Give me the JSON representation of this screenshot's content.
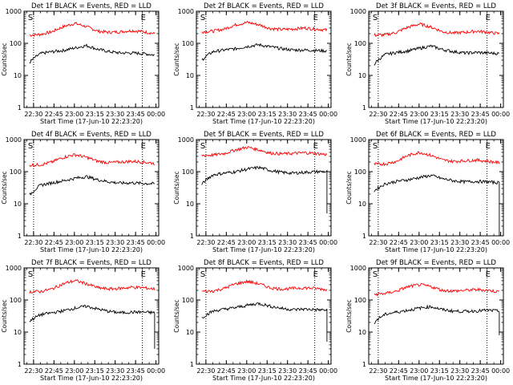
{
  "chart_data": [
    {
      "type": "line",
      "title": "Det 1f BLACK = Events, RED = LLD",
      "xlabel": "Start Time (17-Jun-10 22:23:20)",
      "ylabel": "Counts/sec",
      "yscale": "log",
      "ylim": [
        1,
        1000
      ],
      "yticks": [
        "1",
        "10",
        "100",
        "1000"
      ],
      "xticks": [
        "22:30",
        "22:45",
        "23:00",
        "23:15",
        "23:30",
        "23:45",
        "00:00"
      ],
      "markers": [
        "S",
        "E"
      ],
      "vlines": [
        "22:30",
        "23:50"
      ],
      "series": [
        {
          "color": "#ff0000",
          "values": [
            180,
            190,
            230,
            330,
            420,
            330,
            240,
            220,
            230,
            250,
            230,
            200
          ],
          "end_drop": null
        },
        {
          "color": "#000000",
          "values": [
            25,
            48,
            55,
            60,
            72,
            85,
            65,
            55,
            50,
            50,
            48,
            43
          ],
          "end_drop": null
        }
      ]
    },
    {
      "type": "line",
      "title": "Det 2f BLACK = Events, RED = LLD",
      "xlabel": "Start Time (17-Jun-10 22:23:20)",
      "ylabel": "Counts/sec",
      "yscale": "log",
      "ylim": [
        1,
        1000
      ],
      "yticks": [
        "1",
        "10",
        "100",
        "1000"
      ],
      "xticks": [
        "22:30",
        "22:45",
        "23:00",
        "23:15",
        "23:30",
        "23:45",
        "00:00"
      ],
      "markers": [
        "S",
        "E"
      ],
      "vlines": [
        "22:30",
        "23:50"
      ],
      "series": [
        {
          "color": "#ff0000",
          "values": [
            230,
            240,
            280,
            380,
            450,
            380,
            290,
            270,
            280,
            300,
            280,
            260
          ],
          "end_drop": null
        },
        {
          "color": "#000000",
          "values": [
            30,
            55,
            62,
            68,
            80,
            90,
            78,
            68,
            62,
            62,
            60,
            58
          ],
          "end_drop": null
        }
      ]
    },
    {
      "type": "line",
      "title": "Det 3f BLACK = Events, RED = LLD",
      "xlabel": "Start Time (17-Jun-10 22:23:20)",
      "ylabel": "Counts/sec",
      "yscale": "log",
      "ylim": [
        1,
        1000
      ],
      "yticks": [
        "1",
        "10",
        "100",
        "1000"
      ],
      "xticks": [
        "22:30",
        "22:45",
        "23:00",
        "23:15",
        "23:30",
        "23:45",
        "00:00"
      ],
      "markers": [
        "S",
        "E"
      ],
      "vlines": [
        "22:30",
        "23:50"
      ],
      "series": [
        {
          "color": "#ff0000",
          "values": [
            180,
            185,
            220,
            320,
            400,
            320,
            230,
            210,
            220,
            240,
            220,
            200
          ],
          "end_drop": null
        },
        {
          "color": "#000000",
          "values": [
            22,
            45,
            52,
            58,
            70,
            82,
            64,
            55,
            50,
            52,
            50,
            48
          ],
          "end_drop": null
        }
      ]
    },
    {
      "type": "line",
      "title": "Det 4f BLACK = Events, RED = LLD",
      "xlabel": "Start Time (17-Jun-10 22:23:20)",
      "ylabel": "Counts/sec",
      "yscale": "log",
      "ylim": [
        1,
        1000
      ],
      "yticks": [
        "1",
        "10",
        "100",
        "1000"
      ],
      "xticks": [
        "22:30",
        "22:45",
        "23:00",
        "23:15",
        "23:30",
        "23:45",
        "00:00"
      ],
      "markers": [
        "S",
        "E"
      ],
      "vlines": [
        "22:30",
        "23:50"
      ],
      "series": [
        {
          "color": "#ff0000",
          "values": [
            160,
            165,
            200,
            280,
            340,
            280,
            210,
            190,
            200,
            210,
            200,
            180
          ],
          "end_drop": null
        },
        {
          "color": "#000000",
          "values": [
            18,
            38,
            45,
            52,
            62,
            70,
            56,
            48,
            44,
            45,
            43,
            42
          ],
          "end_drop": null
        }
      ]
    },
    {
      "type": "line",
      "title": "Det 5f BLACK = Events, RED = LLD",
      "xlabel": "Start Time (17-Jun-10 22:23:20)",
      "ylabel": "Counts/sec",
      "yscale": "log",
      "ylim": [
        1,
        1000
      ],
      "yticks": [
        "1",
        "10",
        "100",
        "1000"
      ],
      "xticks": [
        "22:30",
        "22:45",
        "23:00",
        "23:15",
        "23:30",
        "23:45",
        "00:00"
      ],
      "markers": [
        "S",
        "E"
      ],
      "vlines": [
        "22:30",
        "23:50"
      ],
      "series": [
        {
          "color": "#ff0000",
          "values": [
            320,
            330,
            370,
            480,
            580,
            480,
            380,
            360,
            370,
            390,
            370,
            340
          ],
          "end_drop": null
        },
        {
          "color": "#000000",
          "values": [
            40,
            80,
            90,
            100,
            120,
            135,
            110,
            95,
            90,
            95,
            100,
            100
          ],
          "end_drop": 5
        }
      ]
    },
    {
      "type": "line",
      "title": "Det 6f BLACK = Events, RED = LLD",
      "xlabel": "Start Time (17-Jun-10 22:23:20)",
      "ylabel": "Counts/sec",
      "yscale": "log",
      "ylim": [
        1,
        1000
      ],
      "yticks": [
        "1",
        "10",
        "100",
        "1000"
      ],
      "xticks": [
        "22:30",
        "22:45",
        "23:00",
        "23:15",
        "23:30",
        "23:45",
        "00:00"
      ],
      "markers": [
        "S",
        "E"
      ],
      "vlines": [
        "22:30",
        "23:50"
      ],
      "series": [
        {
          "color": "#ff0000",
          "values": [
            170,
            175,
            210,
            320,
            400,
            320,
            230,
            210,
            220,
            230,
            210,
            190
          ],
          "end_drop": null
        },
        {
          "color": "#000000",
          "values": [
            25,
            42,
            50,
            56,
            66,
            76,
            60,
            52,
            48,
            50,
            48,
            45
          ],
          "end_drop": 1
        }
      ]
    },
    {
      "type": "line",
      "title": "Det 7f BLACK = Events, RED = LLD",
      "xlabel": "Start Time (17-Jun-10 22:23:20)",
      "ylabel": "Counts/sec",
      "yscale": "log",
      "ylim": [
        1,
        1000
      ],
      "yticks": [
        "1",
        "10",
        "100",
        "1000"
      ],
      "xticks": [
        "22:30",
        "22:45",
        "23:00",
        "23:15",
        "23:30",
        "23:45",
        "00:00"
      ],
      "markers": [
        "S",
        "E"
      ],
      "vlines": [
        "22:30",
        "23:50"
      ],
      "series": [
        {
          "color": "#ff0000",
          "values": [
            180,
            185,
            220,
            320,
            400,
            320,
            240,
            220,
            230,
            250,
            240,
            220
          ],
          "end_drop": null
        },
        {
          "color": "#000000",
          "values": [
            22,
            35,
            40,
            46,
            56,
            64,
            52,
            44,
            40,
            42,
            42,
            40
          ],
          "end_drop": 3
        }
      ]
    },
    {
      "type": "line",
      "title": "Det 8f BLACK = Events, RED = LLD",
      "xlabel": "Start Time (17-Jun-10 22:23:20)",
      "ylabel": "Counts/sec",
      "yscale": "log",
      "ylim": [
        1,
        1000
      ],
      "yticks": [
        "1",
        "10",
        "100",
        "1000"
      ],
      "xticks": [
        "22:30",
        "22:45",
        "23:00",
        "23:15",
        "23:30",
        "23:45",
        "00:00"
      ],
      "markers": [
        "S",
        "E"
      ],
      "vlines": [
        "22:30",
        "23:50"
      ],
      "series": [
        {
          "color": "#ff0000",
          "values": [
            185,
            190,
            230,
            320,
            380,
            320,
            240,
            220,
            230,
            240,
            230,
            210
          ],
          "end_drop": null
        },
        {
          "color": "#000000",
          "values": [
            28,
            45,
            52,
            58,
            68,
            78,
            64,
            55,
            50,
            52,
            50,
            48
          ],
          "end_drop": 5
        }
      ]
    },
    {
      "type": "line",
      "title": "Det 9f BLACK = Events, RED = LLD",
      "xlabel": "Start Time (17-Jun-10 22:23:20)",
      "ylabel": "Counts/sec",
      "yscale": "log",
      "ylim": [
        1,
        1000
      ],
      "yticks": [
        "1",
        "10",
        "100",
        "1000"
      ],
      "xticks": [
        "22:30",
        "22:45",
        "23:00",
        "23:15",
        "23:30",
        "23:45",
        "00:00"
      ],
      "markers": [
        "S",
        "E"
      ],
      "vlines": [
        "22:30",
        "23:50"
      ],
      "series": [
        {
          "color": "#ff0000",
          "values": [
            150,
            160,
            190,
            260,
            300,
            260,
            200,
            190,
            200,
            210,
            200,
            180
          ],
          "end_drop": null
        },
        {
          "color": "#000000",
          "values": [
            20,
            36,
            42,
            48,
            56,
            62,
            50,
            45,
            44,
            46,
            48,
            45
          ],
          "end_drop": 8
        }
      ]
    }
  ]
}
